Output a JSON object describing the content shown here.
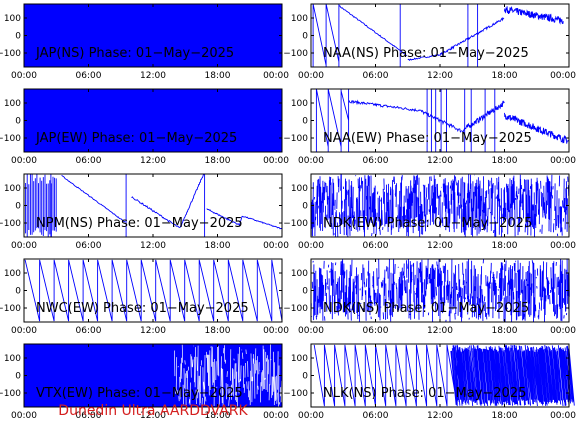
{
  "footer": "Dunedin Ultra AARDDVARK",
  "colors": {
    "trace": "#0000ff",
    "axes": "#000000",
    "footer": "#d42020"
  },
  "chart_data": [
    {
      "type": "line",
      "title": "JAP(NS) Phase: 01−May−2025",
      "ylim": [
        -180,
        180
      ],
      "yticks": [
        "100",
        "0",
        "−100"
      ],
      "xticks": [
        "00:00",
        "06:00",
        "12:00",
        "18:00",
        "00:00"
      ],
      "pattern": "fill",
      "series": []
    },
    {
      "type": "line",
      "title": "NAA(NS) Phase: 01−May−2025",
      "ylim": [
        -180,
        180
      ],
      "yticks": [
        "100",
        "0",
        "−100"
      ],
      "xticks": [
        "00:00",
        "06:00",
        "12:00",
        "18:00",
        "00:00"
      ],
      "pattern": "naa_ns",
      "series": []
    },
    {
      "type": "line",
      "title": "JAP(EW) Phase: 01−May−2025",
      "ylim": [
        -180,
        180
      ],
      "yticks": [
        "100",
        "0",
        "−100"
      ],
      "xticks": [
        "00:00",
        "06:00",
        "12:00",
        "18:00",
        "00:00"
      ],
      "pattern": "fill",
      "series": []
    },
    {
      "type": "line",
      "title": "NAA(EW) Phase: 01−May−2025",
      "ylim": [
        -180,
        180
      ],
      "yticks": [
        "100",
        "0",
        "−100"
      ],
      "xticks": [
        "00:00",
        "06:00",
        "12:00",
        "18:00",
        "00:00"
      ],
      "pattern": "naa_ew",
      "series": []
    },
    {
      "type": "line",
      "title": "NPM(NS) Phase: 01−May−2025",
      "ylim": [
        -180,
        180
      ],
      "yticks": [
        "100",
        "0",
        "−100"
      ],
      "xticks": [
        "00:00",
        "06:00",
        "12:00",
        "18:00",
        "00:00"
      ],
      "pattern": "npm",
      "series": []
    },
    {
      "type": "line",
      "title": "NDK(EW) Phase: 01−May−2025",
      "ylim": [
        -180,
        180
      ],
      "yticks": [
        "100",
        "0",
        "−100"
      ],
      "xticks": [
        "00:00",
        "06:00",
        "12:00",
        "18:00",
        "00:00"
      ],
      "pattern": "noise",
      "series": []
    },
    {
      "type": "line",
      "title": "NWC(EW) Phase: 01−May−2025",
      "ylim": [
        -180,
        180
      ],
      "yticks": [
        "100",
        "0",
        "−100"
      ],
      "xticks": [
        "00:00",
        "06:00",
        "12:00",
        "18:00",
        "00:00"
      ],
      "pattern": "nwc",
      "series": []
    },
    {
      "type": "line",
      "title": "NDK(NS) Phase: 01−May−2025",
      "ylim": [
        -180,
        180
      ],
      "yticks": [
        "100",
        "0",
        "−100"
      ],
      "xticks": [
        "00:00",
        "06:00",
        "12:00",
        "18:00",
        "00:00"
      ],
      "pattern": "noise",
      "series": []
    },
    {
      "type": "line",
      "title": "VTX(EW) Phase: 01−May−2025",
      "ylim": [
        -180,
        180
      ],
      "yticks": [
        "100",
        "0",
        "−100"
      ],
      "xticks": [
        "00:00",
        "06:00",
        "12:00",
        "18:00",
        "00:00"
      ],
      "pattern": "vtx",
      "series": []
    },
    {
      "type": "line",
      "title": "NLK(NS) Phase: 01−May−2025",
      "ylim": [
        -180,
        180
      ],
      "yticks": [
        "100",
        "0",
        "−100"
      ],
      "xticks": [
        "00:00",
        "06:00",
        "12:00",
        "18:00",
        "00:00"
      ],
      "pattern": "nlk",
      "series": []
    }
  ]
}
